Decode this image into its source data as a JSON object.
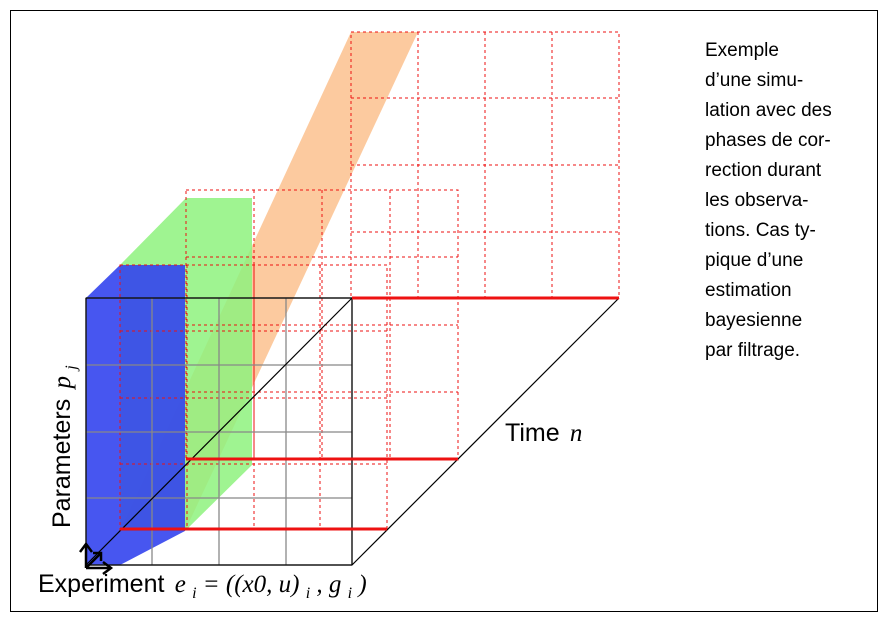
{
  "caption_lines": [
    "Exemple",
    "d’une simu-",
    "lation avec des",
    "phases de cor-",
    "rection durant",
    "les observa-",
    "tions. Cas ty-",
    "pique d’une",
    "estimation",
    "bayesienne",
    "par filtrage."
  ],
  "labels": {
    "time": "Time",
    "time_var": "n",
    "parameters": "Parameters",
    "parameters_var": "p",
    "parameters_sub": "j",
    "experiment": "Experiment",
    "experiment_formula": "e",
    "experiment_sub": "i",
    "experiment_eq": " = ((x0, u)",
    "experiment_sub2": "i",
    "experiment_tail": ", g",
    "experiment_sub3": "i",
    "experiment_close": ")"
  },
  "colors": {
    "blue_slab": "#3344ee",
    "green_slab": "#8ef27e",
    "orange_slab": "#fbc18e",
    "red_line": "#ee1111",
    "grid_gray": "#888888"
  }
}
